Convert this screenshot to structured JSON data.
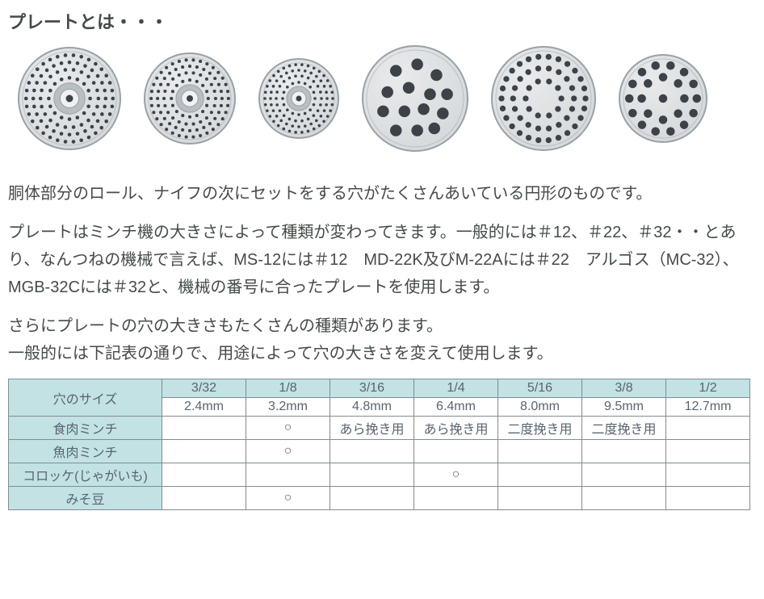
{
  "title": "プレートとは・・・",
  "plates": [
    {
      "size": 128,
      "holes": "fine",
      "hub": true
    },
    {
      "size": 114,
      "holes": "fine",
      "hub": true
    },
    {
      "size": 100,
      "holes": "fine",
      "hub": true
    },
    {
      "size": 132,
      "holes": "big",
      "hub": false
    },
    {
      "size": 130,
      "holes": "medium",
      "hub": false
    },
    {
      "size": 110,
      "holes": "mid",
      "hub": false
    }
  ],
  "plate_colors": {
    "body": "#d6d9db",
    "body_light": "#e8eaec",
    "rim": "#9aa1a7",
    "hole": "#3c4247",
    "hub": "#b9bec2",
    "hub_top": "#f0f1f2"
  },
  "para1": "胴体部分のロール、ナイフの次にセットをする穴がたくさんあいている円形のものです。",
  "para2": "プレートはミンチ機の大きさによって種類が変わってきます。一般的には＃12、＃22、＃32・・とあり、なんつねの機械で言えば、MS-12には＃12　MD-22K及びM-22Aには＃22　アルゴス（MC-32）、MGB-32Cには＃32と、機械の番号に合ったプレートを使用します。",
  "para3": "さらにプレートの穴の大きさもたくさんの種類があります。\n一般的には下記表の通りで、用途によって穴の大きさを変えて使用します。",
  "table": {
    "corner_label": "穴のサイズ",
    "size_cols": [
      {
        "frac": "3/32",
        "mm": "2.4mm"
      },
      {
        "frac": "1/8",
        "mm": "3.2mm"
      },
      {
        "frac": "3/16",
        "mm": "4.8mm"
      },
      {
        "frac": "1/4",
        "mm": "6.4mm"
      },
      {
        "frac": "5/16",
        "mm": "8.0mm"
      },
      {
        "frac": "3/8",
        "mm": "9.5mm"
      },
      {
        "frac": "1/2",
        "mm": "12.7mm"
      }
    ],
    "rows": [
      {
        "label": "食肉ミンチ",
        "cells": [
          "",
          "○",
          "あら挽き用",
          "あら挽き用",
          "二度挽き用",
          "二度挽き用",
          ""
        ]
      },
      {
        "label": "魚肉ミンチ",
        "cells": [
          "",
          "○",
          "",
          "",
          "",
          "",
          ""
        ]
      },
      {
        "label": "コロッケ(じゃがいも)",
        "cells": [
          "",
          "",
          "",
          "○",
          "",
          "",
          ""
        ]
      },
      {
        "label": "みそ豆",
        "cells": [
          "",
          "○",
          "",
          "",
          "",
          "",
          ""
        ]
      }
    ],
    "header_bg": "#c2e2e4",
    "border_color": "#838b93",
    "text_color": "#596470"
  }
}
